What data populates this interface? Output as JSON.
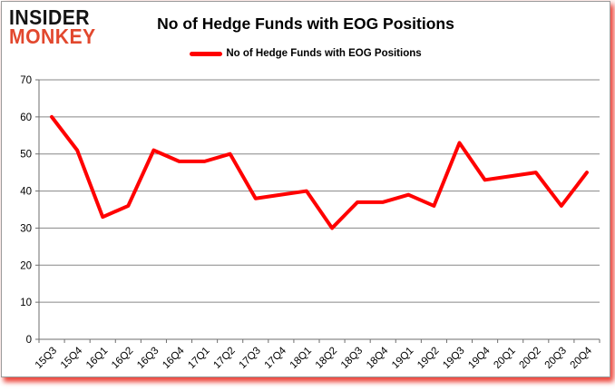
{
  "logo": {
    "line1": "INSIDER",
    "line2": "MONKEY",
    "line1_color": "#141414",
    "line2_color": "#e2482e"
  },
  "header": {
    "title": "No of Hedge Funds with EOG Positions"
  },
  "legend": {
    "label": "No of Hedge Funds with EOG Positions",
    "swatch_color": "#ff0000"
  },
  "chart_data": {
    "type": "line",
    "title": "No of Hedge Funds with EOG Positions",
    "categories": [
      "15Q3",
      "15Q4",
      "16Q1",
      "16Q2",
      "16Q3",
      "16Q4",
      "17Q1",
      "17Q2",
      "17Q3",
      "17Q4",
      "18Q1",
      "18Q2",
      "18Q3",
      "18Q4",
      "19Q1",
      "19Q2",
      "19Q3",
      "19Q4",
      "20Q1",
      "20Q2",
      "20Q3",
      "20Q4"
    ],
    "series": [
      {
        "name": "No of Hedge Funds with EOG Positions",
        "color": "#ff0000",
        "values": [
          60,
          51,
          33,
          36,
          51,
          48,
          48,
          50,
          38,
          39,
          40,
          30,
          37,
          37,
          39,
          36,
          53,
          43,
          44,
          45,
          36,
          45
        ]
      }
    ],
    "xlabel": "",
    "ylabel": "",
    "ylim": [
      0,
      70
    ],
    "y_ticks": [
      0,
      10,
      20,
      30,
      40,
      50,
      60,
      70
    ],
    "grid": true,
    "legend_position": "top",
    "gridline_color": "#878787",
    "axis_color": "#6e6e6e",
    "label_color": "#000000",
    "line_width": 4
  }
}
